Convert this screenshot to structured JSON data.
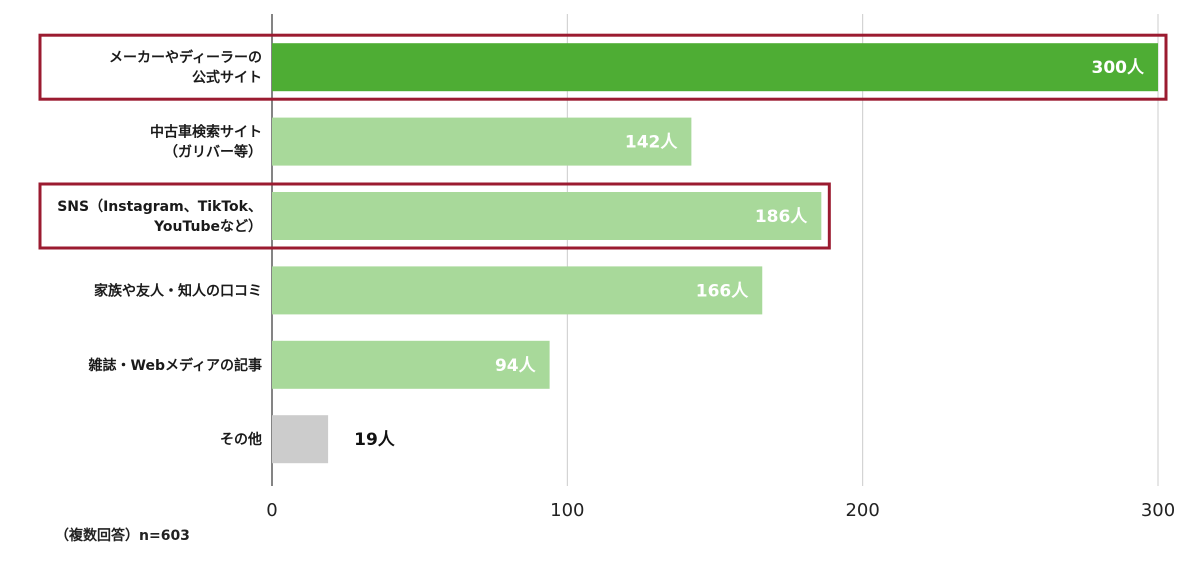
{
  "chart_data": {
    "type": "bar",
    "orientation": "horizontal",
    "categories": [
      [
        "メーカーやディーラーの",
        "公式サイト"
      ],
      [
        "中古車検索サイト",
        "（ガリバー等）"
      ],
      [
        "SNS（Instagram、TikTok、",
        "YouTubeなど）"
      ],
      [
        "家族や友人・知人の口コミ"
      ],
      [
        "雑誌・Webメディアの記事"
      ],
      [
        "その他"
      ]
    ],
    "values": [
      300,
      142,
      186,
      166,
      94,
      19
    ],
    "value_labels": [
      "300人",
      "142人",
      "186人",
      "166人",
      "94人",
      "19人"
    ],
    "xlim": [
      0,
      300
    ],
    "xticks": [
      0,
      100,
      200,
      300
    ],
    "xtick_labels": [
      "0",
      "100",
      "200",
      "300"
    ],
    "grid": true,
    "highlighted": [
      0,
      2
    ],
    "colors": {
      "primary": "#4ead34",
      "light": "#a8d99a",
      "other": "#cccccc",
      "highlight_border": "#9b1b30",
      "grid": "#cccccc",
      "axis": "#333333"
    },
    "bar_colors": [
      "primary",
      "light",
      "light",
      "light",
      "light",
      "other"
    ],
    "note": "（複数回答）n=603"
  }
}
